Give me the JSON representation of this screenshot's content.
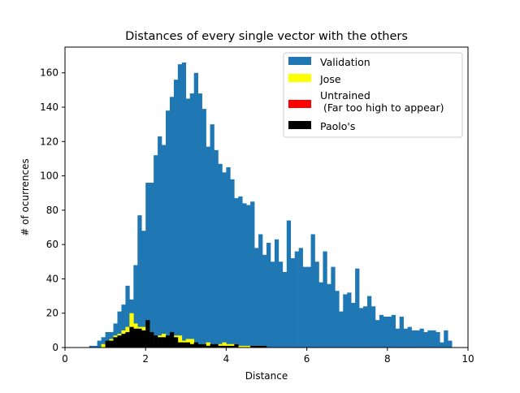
{
  "chart_data": {
    "type": "bar",
    "title": "Distances of every single vector with the others",
    "xlabel": "Distance",
    "ylabel": "# of ocurrences",
    "xlim": [
      0,
      10
    ],
    "ylim": [
      0,
      175
    ],
    "xticks": [
      "0",
      "2",
      "4",
      "6",
      "8",
      "10"
    ],
    "yticks": [
      "0",
      "20",
      "40",
      "60",
      "80",
      "100",
      "120",
      "140",
      "160"
    ],
    "grid": false,
    "legend_position": "top-right",
    "bin_width": 0.1,
    "series": [
      {
        "name": "Validation",
        "color": "#1f77b4",
        "bin_starts": [
          0.6,
          0.7,
          0.8,
          0.9,
          1.0,
          1.1,
          1.2,
          1.3,
          1.4,
          1.5,
          1.6,
          1.7,
          1.8,
          1.9,
          2.0,
          2.1,
          2.2,
          2.3,
          2.4,
          2.5,
          2.6,
          2.7,
          2.8,
          2.9,
          3.0,
          3.1,
          3.2,
          3.3,
          3.4,
          3.5,
          3.6,
          3.7,
          3.8,
          3.9,
          4.0,
          4.1,
          4.2,
          4.3,
          4.4,
          4.5,
          4.6,
          4.7,
          4.8,
          4.9,
          5.0,
          5.1,
          5.2,
          5.3,
          5.4,
          5.5,
          5.6,
          5.7,
          5.8,
          5.9,
          6.0,
          6.1,
          6.2,
          6.3,
          6.4,
          6.5,
          6.6,
          6.7,
          6.8,
          6.9,
          7.0,
          7.1,
          7.2,
          7.3,
          7.4,
          7.5,
          7.6,
          7.7,
          7.8,
          7.9,
          8.0,
          8.1,
          8.2,
          8.3,
          8.4,
          8.5,
          8.6,
          8.7,
          8.8,
          8.9,
          9.0,
          9.1,
          9.2,
          9.3,
          9.4,
          9.5,
          9.6,
          9.7,
          9.8,
          9.9
        ],
        "values": [
          1,
          1,
          4,
          6,
          9,
          9,
          14,
          21,
          25,
          36,
          28,
          48,
          77,
          68,
          96,
          96,
          112,
          123,
          118,
          138,
          146,
          156,
          165,
          166,
          145,
          148,
          160,
          148,
          139,
          117,
          130,
          115,
          107,
          102,
          105,
          98,
          87,
          88,
          84,
          83,
          85,
          58,
          66,
          54,
          61,
          50,
          63,
          50,
          44,
          74,
          52,
          56,
          58,
          47,
          47,
          66,
          50,
          38,
          56,
          37,
          47,
          33,
          21,
          31,
          32,
          26,
          46,
          23,
          24,
          30,
          24,
          16,
          19,
          18,
          18,
          19,
          11,
          18,
          11,
          12,
          10,
          10,
          11,
          9,
          10,
          10,
          9,
          3,
          10,
          4
        ]
      },
      {
        "name": "Jose",
        "color": "#ffff00",
        "bin_starts": [
          0.9,
          1.0,
          1.1,
          1.2,
          1.3,
          1.4,
          1.5,
          1.6,
          1.7,
          1.8,
          1.9,
          2.0,
          2.1,
          2.2,
          2.3,
          2.4,
          2.5,
          2.6,
          2.7,
          2.8,
          2.9,
          3.0,
          3.1,
          3.2,
          3.3,
          3.4,
          3.5,
          3.6,
          3.7,
          3.8,
          3.9,
          4.0,
          4.1,
          4.2,
          4.3,
          4.4,
          4.5,
          4.6,
          4.7,
          4.8,
          4.9
        ],
        "values": [
          2,
          4,
          5,
          7,
          8,
          10,
          12,
          20,
          14,
          12,
          12,
          13,
          9,
          6,
          7,
          8,
          6,
          7,
          7,
          7,
          4,
          5,
          5,
          2,
          2,
          2,
          3,
          2,
          1,
          2,
          3,
          2,
          2,
          2,
          1,
          1,
          1,
          1,
          1,
          1,
          0
        ]
      },
      {
        "name": "Untrained\n (Far too high to appear)",
        "color": "#ff0000",
        "bin_starts": [],
        "values": []
      },
      {
        "name": "Paolo's",
        "color": "#000000",
        "bin_starts": [
          1.0,
          1.1,
          1.2,
          1.3,
          1.4,
          1.5,
          1.6,
          1.7,
          1.8,
          1.9,
          2.0,
          2.1,
          2.2,
          2.3,
          2.4,
          2.5,
          2.6,
          2.7,
          2.8,
          2.9,
          3.0,
          3.1,
          3.2,
          3.3,
          3.4,
          3.5,
          3.6,
          3.7,
          3.8,
          3.9,
          4.0,
          4.1,
          4.2,
          4.3,
          4.4,
          4.5,
          4.6,
          4.7,
          4.8,
          4.9
        ],
        "values": [
          4,
          4,
          6,
          7,
          8,
          9,
          12,
          11,
          11,
          10,
          16,
          9,
          7,
          6,
          6,
          7,
          9,
          6,
          3,
          3,
          3,
          2,
          3,
          2,
          2,
          1,
          2,
          2,
          1,
          1,
          1,
          1,
          2,
          0,
          0,
          0,
          1,
          1,
          1,
          1
        ]
      }
    ]
  }
}
